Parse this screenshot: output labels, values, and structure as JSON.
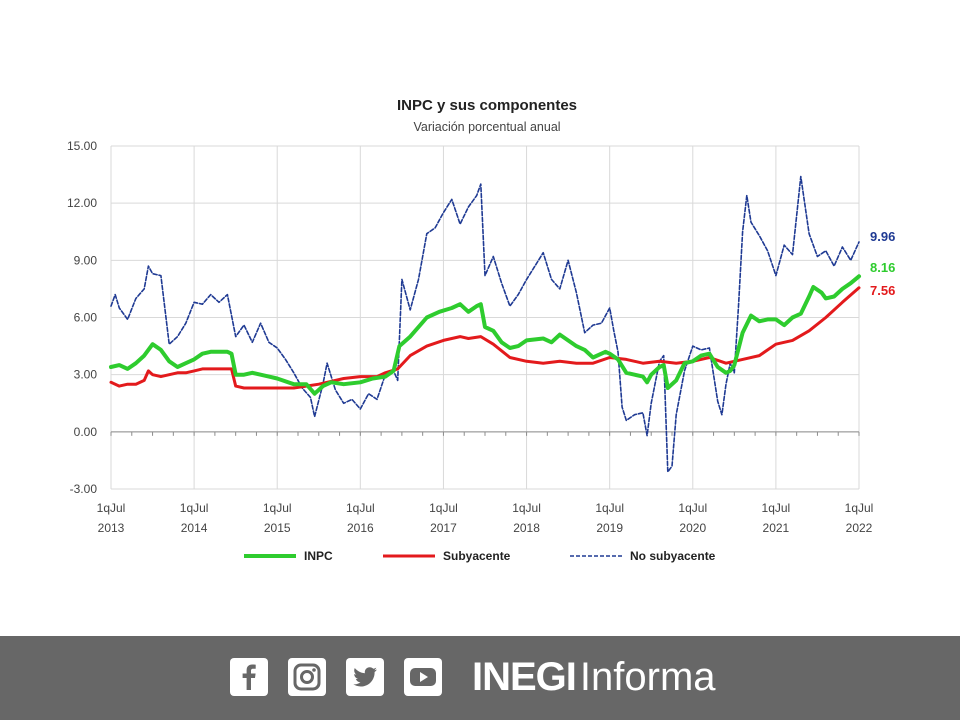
{
  "chart_data": {
    "type": "line",
    "title": "INPC y sus componentes",
    "subtitle": "Variación porcentual anual",
    "ylim": [
      -3,
      15
    ],
    "yticks": [
      "15.00",
      "12.00",
      "9.00",
      "6.00",
      "3.00",
      "0.00",
      "-3.00"
    ],
    "ytick_values": [
      15,
      12,
      9,
      6,
      3,
      0,
      -3
    ],
    "xlim": [
      2013.0,
      2022.0
    ],
    "xtick_labels": [
      {
        "line1": "1qJul",
        "line2": "2013",
        "x": 2013
      },
      {
        "line1": "1qJul",
        "line2": "2014",
        "x": 2014
      },
      {
        "line1": "1qJul",
        "line2": "2015",
        "x": 2015
      },
      {
        "line1": "1qJul",
        "line2": "2016",
        "x": 2016
      },
      {
        "line1": "1qJul",
        "line2": "2017",
        "x": 2017
      },
      {
        "line1": "1qJul",
        "line2": "2018",
        "x": 2018
      },
      {
        "line1": "1qJul",
        "line2": "2019",
        "x": 2019
      },
      {
        "line1": "1qJul",
        "line2": "2020",
        "x": 2020
      },
      {
        "line1": "1qJul",
        "line2": "2021",
        "x": 2021
      },
      {
        "line1": "1qJul",
        "line2": "2022",
        "x": 2022
      }
    ],
    "grid": true,
    "legend_position": "bottom",
    "series": [
      {
        "name": "INPC",
        "color": "#2ecc2e",
        "style": "solid",
        "end_label": "8.16",
        "points": [
          [
            2013.0,
            3.4
          ],
          [
            2013.1,
            3.5
          ],
          [
            2013.2,
            3.3
          ],
          [
            2013.3,
            3.6
          ],
          [
            2013.4,
            4.0
          ],
          [
            2013.5,
            4.6
          ],
          [
            2013.6,
            4.3
          ],
          [
            2013.7,
            3.7
          ],
          [
            2013.8,
            3.4
          ],
          [
            2013.9,
            3.6
          ],
          [
            2014.0,
            3.8
          ],
          [
            2014.1,
            4.1
          ],
          [
            2014.2,
            4.2
          ],
          [
            2014.3,
            4.2
          ],
          [
            2014.4,
            4.2
          ],
          [
            2014.45,
            4.1
          ],
          [
            2014.5,
            3.0
          ],
          [
            2014.6,
            3.0
          ],
          [
            2014.7,
            3.1
          ],
          [
            2014.8,
            3.0
          ],
          [
            2014.9,
            2.9
          ],
          [
            2015.0,
            2.8
          ],
          [
            2015.2,
            2.5
          ],
          [
            2015.35,
            2.5
          ],
          [
            2015.45,
            2.0
          ],
          [
            2015.55,
            2.4
          ],
          [
            2015.65,
            2.6
          ],
          [
            2015.8,
            2.5
          ],
          [
            2016.0,
            2.6
          ],
          [
            2016.15,
            2.8
          ],
          [
            2016.3,
            2.9
          ],
          [
            2016.4,
            3.2
          ],
          [
            2016.47,
            4.5
          ],
          [
            2016.6,
            5.0
          ],
          [
            2016.8,
            6.0
          ],
          [
            2016.95,
            6.3
          ],
          [
            2017.1,
            6.5
          ],
          [
            2017.2,
            6.7
          ],
          [
            2017.3,
            6.3
          ],
          [
            2017.4,
            6.6
          ],
          [
            2017.45,
            6.7
          ],
          [
            2017.5,
            5.5
          ],
          [
            2017.6,
            5.3
          ],
          [
            2017.7,
            4.7
          ],
          [
            2017.8,
            4.4
          ],
          [
            2017.9,
            4.5
          ],
          [
            2018.0,
            4.8
          ],
          [
            2018.2,
            4.9
          ],
          [
            2018.3,
            4.7
          ],
          [
            2018.4,
            5.1
          ],
          [
            2018.5,
            4.8
          ],
          [
            2018.6,
            4.5
          ],
          [
            2018.7,
            4.3
          ],
          [
            2018.8,
            3.9
          ],
          [
            2018.95,
            4.2
          ],
          [
            2019.0,
            4.1
          ],
          [
            2019.1,
            3.8
          ],
          [
            2019.2,
            3.1
          ],
          [
            2019.3,
            3.0
          ],
          [
            2019.4,
            2.9
          ],
          [
            2019.45,
            2.6
          ],
          [
            2019.5,
            3.0
          ],
          [
            2019.6,
            3.4
          ],
          [
            2019.65,
            3.5
          ],
          [
            2019.7,
            2.3
          ],
          [
            2019.8,
            2.7
          ],
          [
            2019.9,
            3.6
          ],
          [
            2020.0,
            3.7
          ],
          [
            2020.1,
            4.0
          ],
          [
            2020.2,
            4.1
          ],
          [
            2020.3,
            3.4
          ],
          [
            2020.4,
            3.1
          ],
          [
            2020.45,
            3.2
          ],
          [
            2020.5,
            3.5
          ],
          [
            2020.6,
            5.2
          ],
          [
            2020.7,
            6.1
          ],
          [
            2020.8,
            5.8
          ],
          [
            2020.9,
            5.9
          ],
          [
            2021.0,
            5.9
          ],
          [
            2021.1,
            5.6
          ],
          [
            2021.2,
            6.0
          ],
          [
            2021.3,
            6.2
          ],
          [
            2021.4,
            7.1
          ],
          [
            2021.45,
            7.6
          ],
          [
            2021.55,
            7.3
          ],
          [
            2021.6,
            7.0
          ],
          [
            2021.7,
            7.1
          ],
          [
            2021.8,
            7.5
          ],
          [
            2021.9,
            7.8
          ],
          [
            2022.0,
            8.16
          ]
        ]
      },
      {
        "name": "Subyacente",
        "color": "#e31a1c",
        "style": "solid",
        "end_label": "7.56",
        "points": [
          [
            2013.0,
            2.6
          ],
          [
            2013.1,
            2.4
          ],
          [
            2013.2,
            2.5
          ],
          [
            2013.3,
            2.5
          ],
          [
            2013.4,
            2.7
          ],
          [
            2013.45,
            3.2
          ],
          [
            2013.5,
            3.0
          ],
          [
            2013.6,
            2.9
          ],
          [
            2013.7,
            3.0
          ],
          [
            2013.8,
            3.1
          ],
          [
            2013.9,
            3.1
          ],
          [
            2014.0,
            3.2
          ],
          [
            2014.1,
            3.3
          ],
          [
            2014.2,
            3.3
          ],
          [
            2014.3,
            3.3
          ],
          [
            2014.45,
            3.3
          ],
          [
            2014.5,
            2.4
          ],
          [
            2014.6,
            2.3
          ],
          [
            2014.8,
            2.3
          ],
          [
            2015.0,
            2.3
          ],
          [
            2015.2,
            2.3
          ],
          [
            2015.35,
            2.4
          ],
          [
            2015.5,
            2.5
          ],
          [
            2015.6,
            2.6
          ],
          [
            2015.8,
            2.8
          ],
          [
            2016.0,
            2.9
          ],
          [
            2016.2,
            2.9
          ],
          [
            2016.3,
            3.1
          ],
          [
            2016.45,
            3.3
          ],
          [
            2016.6,
            4.0
          ],
          [
            2016.8,
            4.5
          ],
          [
            2017.0,
            4.8
          ],
          [
            2017.2,
            5.0
          ],
          [
            2017.3,
            4.9
          ],
          [
            2017.45,
            5.0
          ],
          [
            2017.6,
            4.6
          ],
          [
            2017.8,
            3.9
          ],
          [
            2018.0,
            3.7
          ],
          [
            2018.2,
            3.6
          ],
          [
            2018.4,
            3.7
          ],
          [
            2018.6,
            3.6
          ],
          [
            2018.8,
            3.6
          ],
          [
            2019.0,
            3.9
          ],
          [
            2019.2,
            3.8
          ],
          [
            2019.4,
            3.6
          ],
          [
            2019.6,
            3.7
          ],
          [
            2019.8,
            3.6
          ],
          [
            2020.0,
            3.7
          ],
          [
            2020.2,
            3.9
          ],
          [
            2020.4,
            3.6
          ],
          [
            2020.6,
            3.8
          ],
          [
            2020.8,
            4.0
          ],
          [
            2021.0,
            4.6
          ],
          [
            2021.2,
            4.8
          ],
          [
            2021.4,
            5.3
          ],
          [
            2021.6,
            6.0
          ],
          [
            2021.8,
            6.8
          ],
          [
            2022.0,
            7.56
          ]
        ]
      },
      {
        "name": "No subyacente",
        "color": "#1f3a93",
        "style": "dashed",
        "end_label": "9.96",
        "points": [
          [
            2013.0,
            6.6
          ],
          [
            2013.05,
            7.2
          ],
          [
            2013.1,
            6.5
          ],
          [
            2013.2,
            5.9
          ],
          [
            2013.3,
            7.0
          ],
          [
            2013.4,
            7.5
          ],
          [
            2013.45,
            8.7
          ],
          [
            2013.5,
            8.3
          ],
          [
            2013.6,
            8.2
          ],
          [
            2013.7,
            4.6
          ],
          [
            2013.8,
            5.0
          ],
          [
            2013.9,
            5.7
          ],
          [
            2014.0,
            6.8
          ],
          [
            2014.1,
            6.7
          ],
          [
            2014.2,
            7.2
          ],
          [
            2014.3,
            6.8
          ],
          [
            2014.4,
            7.2
          ],
          [
            2014.5,
            5.0
          ],
          [
            2014.6,
            5.6
          ],
          [
            2014.7,
            4.7
          ],
          [
            2014.8,
            5.7
          ],
          [
            2014.9,
            4.7
          ],
          [
            2015.0,
            4.4
          ],
          [
            2015.1,
            3.8
          ],
          [
            2015.2,
            3.1
          ],
          [
            2015.3,
            2.3
          ],
          [
            2015.4,
            1.8
          ],
          [
            2015.45,
            0.8
          ],
          [
            2015.55,
            2.5
          ],
          [
            2015.6,
            3.6
          ],
          [
            2015.7,
            2.2
          ],
          [
            2015.8,
            1.5
          ],
          [
            2015.9,
            1.7
          ],
          [
            2016.0,
            1.2
          ],
          [
            2016.1,
            2.0
          ],
          [
            2016.2,
            1.7
          ],
          [
            2016.3,
            3.0
          ],
          [
            2016.4,
            3.2
          ],
          [
            2016.45,
            2.7
          ],
          [
            2016.5,
            8.0
          ],
          [
            2016.6,
            6.4
          ],
          [
            2016.7,
            8.0
          ],
          [
            2016.8,
            10.4
          ],
          [
            2016.9,
            10.7
          ],
          [
            2017.0,
            11.5
          ],
          [
            2017.1,
            12.2
          ],
          [
            2017.2,
            10.9
          ],
          [
            2017.3,
            11.8
          ],
          [
            2017.4,
            12.4
          ],
          [
            2017.45,
            13.0
          ],
          [
            2017.5,
            8.2
          ],
          [
            2017.6,
            9.2
          ],
          [
            2017.7,
            7.8
          ],
          [
            2017.8,
            6.6
          ],
          [
            2017.9,
            7.2
          ],
          [
            2018.0,
            8.0
          ],
          [
            2018.1,
            8.7
          ],
          [
            2018.2,
            9.4
          ],
          [
            2018.3,
            8.0
          ],
          [
            2018.4,
            7.5
          ],
          [
            2018.5,
            9.0
          ],
          [
            2018.6,
            7.3
          ],
          [
            2018.7,
            5.2
          ],
          [
            2018.8,
            5.6
          ],
          [
            2018.9,
            5.7
          ],
          [
            2019.0,
            6.5
          ],
          [
            2019.05,
            5.3
          ],
          [
            2019.1,
            4.2
          ],
          [
            2019.15,
            1.3
          ],
          [
            2019.2,
            0.6
          ],
          [
            2019.3,
            0.9
          ],
          [
            2019.4,
            1.0
          ],
          [
            2019.45,
            -0.2
          ],
          [
            2019.5,
            1.5
          ],
          [
            2019.6,
            3.7
          ],
          [
            2019.65,
            4.0
          ],
          [
            2019.7,
            -2.1
          ],
          [
            2019.75,
            -1.8
          ],
          [
            2019.8,
            0.9
          ],
          [
            2019.9,
            3.2
          ],
          [
            2020.0,
            4.5
          ],
          [
            2020.1,
            4.3
          ],
          [
            2020.2,
            4.4
          ],
          [
            2020.3,
            1.6
          ],
          [
            2020.35,
            0.9
          ],
          [
            2020.4,
            2.5
          ],
          [
            2020.45,
            3.6
          ],
          [
            2020.5,
            3.1
          ],
          [
            2020.55,
            6.6
          ],
          [
            2020.6,
            10.5
          ],
          [
            2020.65,
            12.4
          ],
          [
            2020.7,
            11.0
          ],
          [
            2020.8,
            10.3
          ],
          [
            2020.9,
            9.5
          ],
          [
            2021.0,
            8.2
          ],
          [
            2021.1,
            9.8
          ],
          [
            2021.2,
            9.3
          ],
          [
            2021.3,
            13.4
          ],
          [
            2021.4,
            10.4
          ],
          [
            2021.5,
            9.2
          ],
          [
            2021.6,
            9.5
          ],
          [
            2021.7,
            8.7
          ],
          [
            2021.8,
            9.7
          ],
          [
            2021.9,
            9.0
          ],
          [
            2022.0,
            9.96
          ]
        ]
      }
    ]
  },
  "footer": {
    "icons": [
      {
        "name": "facebook-icon",
        "glyph": "f"
      },
      {
        "name": "instagram-icon"
      },
      {
        "name": "twitter-icon"
      },
      {
        "name": "youtube-icon"
      }
    ],
    "brand_bold": "INEGI",
    "brand_light": "Informa",
    "bg_color": "#676767"
  }
}
